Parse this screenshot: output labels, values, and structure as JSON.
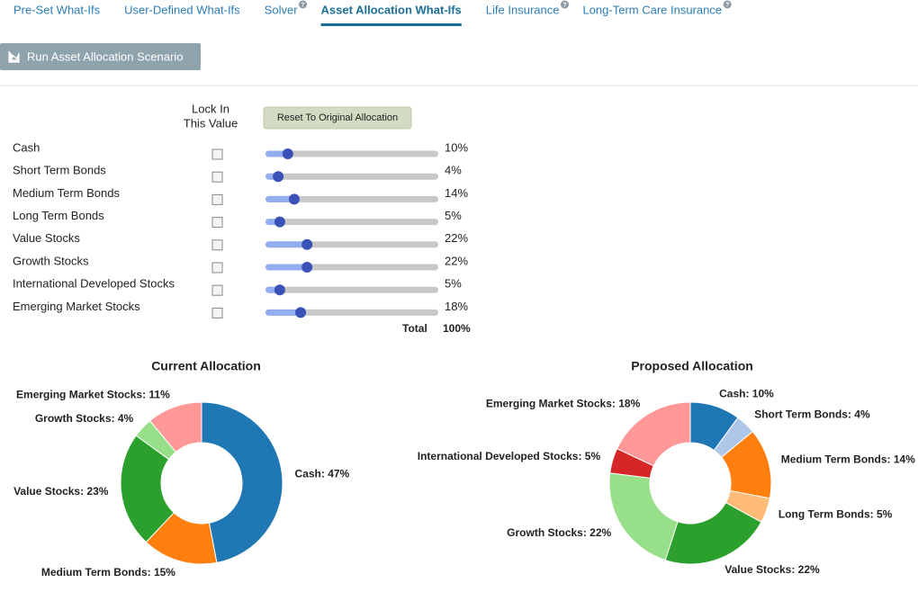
{
  "tabs": [
    {
      "label": "Pre-Set What-Ifs",
      "active": false,
      "help": false
    },
    {
      "label": "User-Defined What-Ifs",
      "active": false,
      "help": false
    },
    {
      "label": "Solver",
      "active": false,
      "help": true
    },
    {
      "label": "Asset Allocation What-Ifs",
      "active": true,
      "help": false
    },
    {
      "label": "Life Insurance",
      "active": false,
      "help": true
    },
    {
      "label": "Long-Term Care Insurance",
      "active": false,
      "help": true
    }
  ],
  "help_icon": "?",
  "run_button": "Run Asset Allocation Scenario",
  "lock_header": [
    "Lock In",
    "This Value"
  ],
  "reset_button": "Reset To Original Allocation",
  "allocation": {
    "categories": [
      "Cash",
      "Short Term Bonds",
      "Medium Term Bonds",
      "Long Term Bonds",
      "Value Stocks",
      "Growth Stocks",
      "International Developed Stocks",
      "Emerging Market Stocks"
    ],
    "values": [
      10,
      4,
      14,
      5,
      22,
      22,
      5,
      18
    ],
    "value_labels": [
      "10%",
      "4%",
      "14%",
      "5%",
      "22%",
      "22%",
      "5%",
      "18%"
    ],
    "slider_lim": [
      0,
      100
    ]
  },
  "total_label": "Total",
  "total_value": "100%",
  "chart_data": [
    {
      "type": "donut",
      "title": "Current Allocation",
      "values": [
        47,
        15,
        23,
        4,
        11
      ],
      "value_labels": [
        "Cash: 47%",
        "Medium Term Bonds: 15%",
        "Value Stocks: 23%",
        "Growth Stocks: 4%",
        "Emerging Market Stocks: 11%"
      ],
      "colors": [
        "#1f77b4",
        "#ff7f0e",
        "#2ca02c",
        "#98df8a",
        "#ff9896"
      ]
    },
    {
      "type": "donut",
      "title": "Proposed Allocation",
      "values": [
        10,
        4,
        14,
        5,
        22,
        22,
        5,
        18
      ],
      "value_labels": [
        "Cash: 10%",
        "Short Term Bonds: 4%",
        "Medium Term Bonds: 14%",
        "Long Term Bonds: 5%",
        "Value Stocks: 22%",
        "Growth Stocks: 22%",
        "International Developed Stocks: 5%",
        "Emerging Market Stocks: 18%"
      ],
      "colors": [
        "#1f77b4",
        "#aec7e8",
        "#ff7f0e",
        "#ffbb78",
        "#2ca02c",
        "#98df8a",
        "#d62728",
        "#ff9896"
      ]
    }
  ]
}
